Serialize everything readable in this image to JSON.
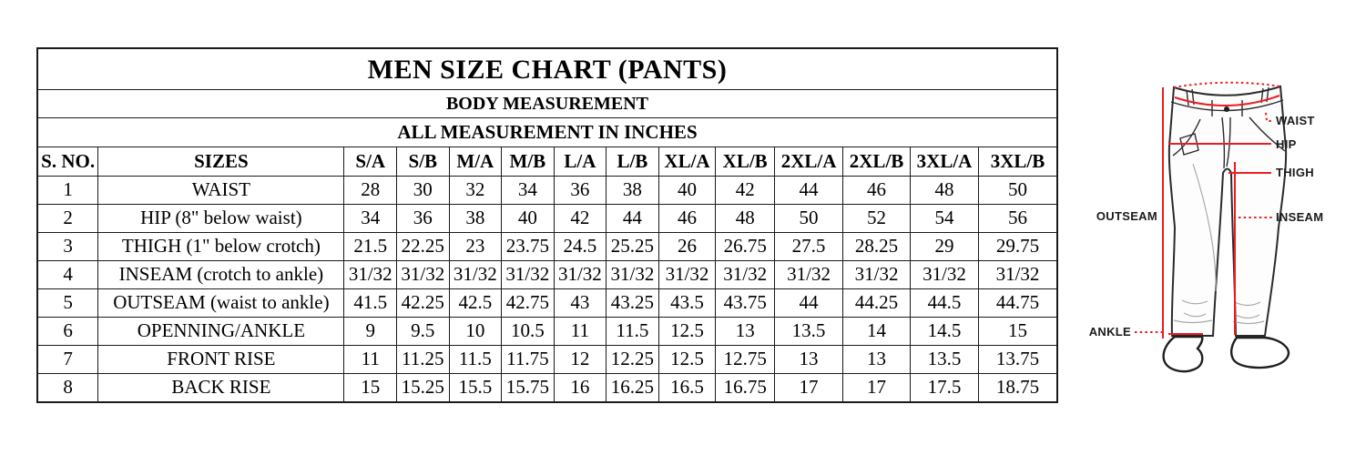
{
  "page": {
    "background": "#ffffff"
  },
  "size_chart": {
    "title": "MEN SIZE CHART (PANTS)",
    "subtitle": "BODY MEASUREMENT",
    "note": "ALL MEASUREMENT IN INCHES",
    "columns": [
      "S. NO.",
      "SIZES",
      "S/A",
      "S/B",
      "M/A",
      "M/B",
      "L/A",
      "L/B",
      "XL/A",
      "XL/B",
      "2XL/A",
      "2XL/B",
      "3XL/A",
      "3XL/B"
    ],
    "rows": [
      {
        "no": "1",
        "label": "WAIST",
        "values": [
          "28",
          "30",
          "32",
          "34",
          "36",
          "38",
          "40",
          "42",
          "44",
          "46",
          "48",
          "50"
        ]
      },
      {
        "no": "2",
        "label": "HIP (8\" below waist)",
        "values": [
          "34",
          "36",
          "38",
          "40",
          "42",
          "44",
          "46",
          "48",
          "50",
          "52",
          "54",
          "56"
        ]
      },
      {
        "no": "3",
        "label": "THIGH (1\" below crotch)",
        "values": [
          "21.5",
          "22.25",
          "23",
          "23.75",
          "24.5",
          "25.25",
          "26",
          "26.75",
          "27.5",
          "28.25",
          "29",
          "29.75"
        ]
      },
      {
        "no": "4",
        "label": "INSEAM (crotch to ankle)",
        "values": [
          "31/32",
          "31/32",
          "31/32",
          "31/32",
          "31/32",
          "31/32",
          "31/32",
          "31/32",
          "31/32",
          "31/32",
          "31/32",
          "31/32"
        ]
      },
      {
        "no": "5",
        "label": "OUTSEAM (waist to ankle)",
        "values": [
          "41.5",
          "42.25",
          "42.5",
          "42.75",
          "43",
          "43.25",
          "43.5",
          "43.75",
          "44",
          "44.25",
          "44.5",
          "44.75"
        ]
      },
      {
        "no": "6",
        "label": "OPENNING/ANKLE",
        "values": [
          "9",
          "9.5",
          "10",
          "10.5",
          "11",
          "11.5",
          "12.5",
          "13",
          "13.5",
          "14",
          "14.5",
          "15"
        ]
      },
      {
        "no": "7",
        "label": "FRONT RISE",
        "values": [
          "11",
          "11.25",
          "11.5",
          "11.75",
          "12",
          "12.25",
          "12.5",
          "12.75",
          "13",
          "13",
          "13.5",
          "13.75"
        ]
      },
      {
        "no": "8",
        "label": "BACK RISE",
        "values": [
          "15",
          "15.25",
          "15.5",
          "15.75",
          "16",
          "16.25",
          "16.5",
          "16.75",
          "17",
          "17",
          "17.5",
          "18.75"
        ]
      }
    ]
  },
  "diagram": {
    "labels": {
      "waist": "WAIST",
      "hip": "HIP",
      "thigh": "THIGH",
      "inseam": "INSEAM",
      "outseam": "OUTSEAM",
      "ankle": "ANKLE"
    },
    "colors": {
      "measure_line": "#ed1c24",
      "pants_outline": "#2b2b2b",
      "label_text": "#1a1a1a"
    }
  }
}
